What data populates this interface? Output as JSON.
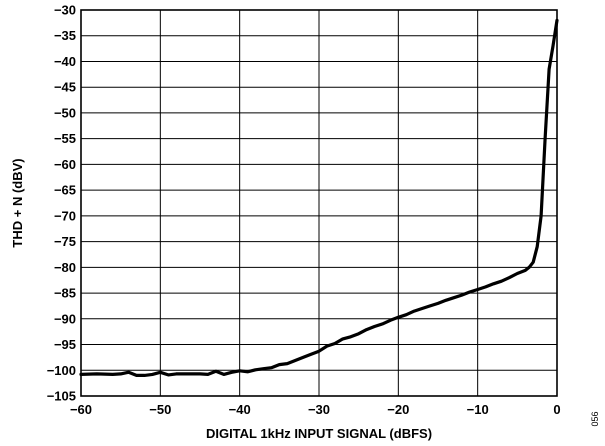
{
  "figure_id": "056",
  "chart_data": {
    "type": "line",
    "title": "",
    "xlabel": "DIGITAL 1kHz INPUT SIGNAL (dBFS)",
    "ylabel": "THD + N (dBV)",
    "xlim": [
      -60,
      0
    ],
    "ylim": [
      -105,
      -30
    ],
    "xticks": [
      -60,
      -50,
      -40,
      -30,
      -20,
      -10,
      0
    ],
    "yticks": [
      -30,
      -35,
      -40,
      -45,
      -50,
      -55,
      -60,
      -65,
      -70,
      -75,
      -80,
      -85,
      -90,
      -95,
      -100,
      -105
    ],
    "xtick_labels": [
      "−60",
      "−50",
      "−40",
      "−30",
      "−20",
      "−10",
      "0"
    ],
    "ytick_labels": [
      "−30",
      "−35",
      "−40",
      "−45",
      "−50",
      "−55",
      "−60",
      "−65",
      "−70",
      "−75",
      "−80",
      "−85",
      "−90",
      "−95",
      "−100",
      "−105"
    ],
    "grid": true,
    "legend": "none",
    "series": [
      {
        "x": [
          -60,
          -58,
          -56,
          -55,
          -54,
          -53,
          -52,
          -51,
          -50,
          -49,
          -48,
          -47,
          -46,
          -45,
          -44,
          -43,
          -42,
          -41,
          -40,
          -39,
          -38,
          -37,
          -36,
          -35,
          -34,
          -33,
          -32,
          -31,
          -30,
          -29,
          -28,
          -27,
          -26,
          -25,
          -24,
          -23,
          -22,
          -21,
          -20,
          -19,
          -18,
          -17,
          -16,
          -15,
          -14,
          -13,
          -12,
          -11,
          -10,
          -9,
          -8,
          -7,
          -6,
          -5,
          -4,
          -3.5,
          -3,
          -2.5,
          -2,
          -1.5,
          -1,
          -0.5,
          0
        ],
        "y": [
          -100.8,
          -100.7,
          -100.8,
          -100.7,
          -100.4,
          -101.0,
          -101.0,
          -100.8,
          -100.4,
          -100.9,
          -100.7,
          -100.7,
          -100.7,
          -100.7,
          -100.8,
          -100.2,
          -100.8,
          -100.4,
          -100.1,
          -100.3,
          -99.9,
          -99.7,
          -99.5,
          -98.9,
          -98.7,
          -98.1,
          -97.5,
          -96.9,
          -96.3,
          -95.3,
          -94.8,
          -93.9,
          -93.5,
          -92.9,
          -92.1,
          -91.5,
          -91.0,
          -90.3,
          -89.7,
          -89.2,
          -88.5,
          -88.0,
          -87.5,
          -87.0,
          -86.4,
          -85.9,
          -85.4,
          -84.8,
          -84.3,
          -83.8,
          -83.2,
          -82.7,
          -82.0,
          -81.2,
          -80.6,
          -80.0,
          -79.0,
          -76.0,
          -70.0,
          -55.0,
          -41.5,
          -37.0,
          -32.0
        ]
      }
    ]
  }
}
